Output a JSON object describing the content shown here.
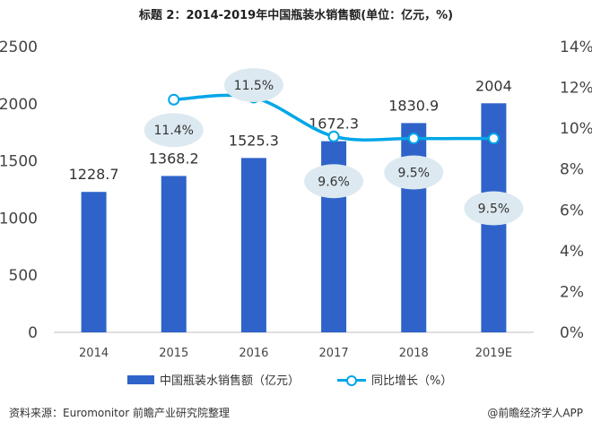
{
  "title": "标题 2：2014-2019年中国瓶装水销售额(单位：亿元，%)",
  "chart_data": {
    "type": "bar+line",
    "categories": [
      "2014",
      "2015",
      "2016",
      "2017",
      "2018",
      "2019E"
    ],
    "series": [
      {
        "name": "中国瓶装水销售额（亿元）",
        "type": "bar",
        "axis": "left",
        "values": [
          1228.7,
          1368.2,
          1525.3,
          1672.3,
          1830.9,
          2004
        ],
        "labels": [
          "1228.7",
          "1368.2",
          "1525.3",
          "1672.3",
          "1830.9",
          "2004"
        ]
      },
      {
        "name": "同比增长（%）",
        "type": "line",
        "axis": "right",
        "values": [
          null,
          11.4,
          11.5,
          9.6,
          9.5,
          9.5
        ],
        "labels": [
          "",
          "11.4%",
          "11.5%",
          "9.6%",
          "9.5%",
          "9.5%"
        ]
      }
    ],
    "y_left": {
      "min": 0,
      "max": 2500,
      "ticks": [
        "0",
        "500",
        "1000",
        "1500",
        "2000",
        "2500"
      ]
    },
    "y_right": {
      "min": 0,
      "max": 14,
      "ticks": [
        "0%",
        "2%",
        "4%",
        "6%",
        "8%",
        "10%",
        "12%",
        "14%"
      ]
    },
    "colors": {
      "bar": "#2f63c9",
      "line": "#00a6e8",
      "bubble": "#dce9f0",
      "axis": "#bfbfbf"
    }
  },
  "legend": {
    "bar_label": "中国瓶装水销售额（亿元）",
    "line_label": "同比增长（%）"
  },
  "footer": {
    "source": "资料来源：Euromonitor 前瞻产业研究院整理",
    "brand": "@前瞻经济学人APP"
  }
}
